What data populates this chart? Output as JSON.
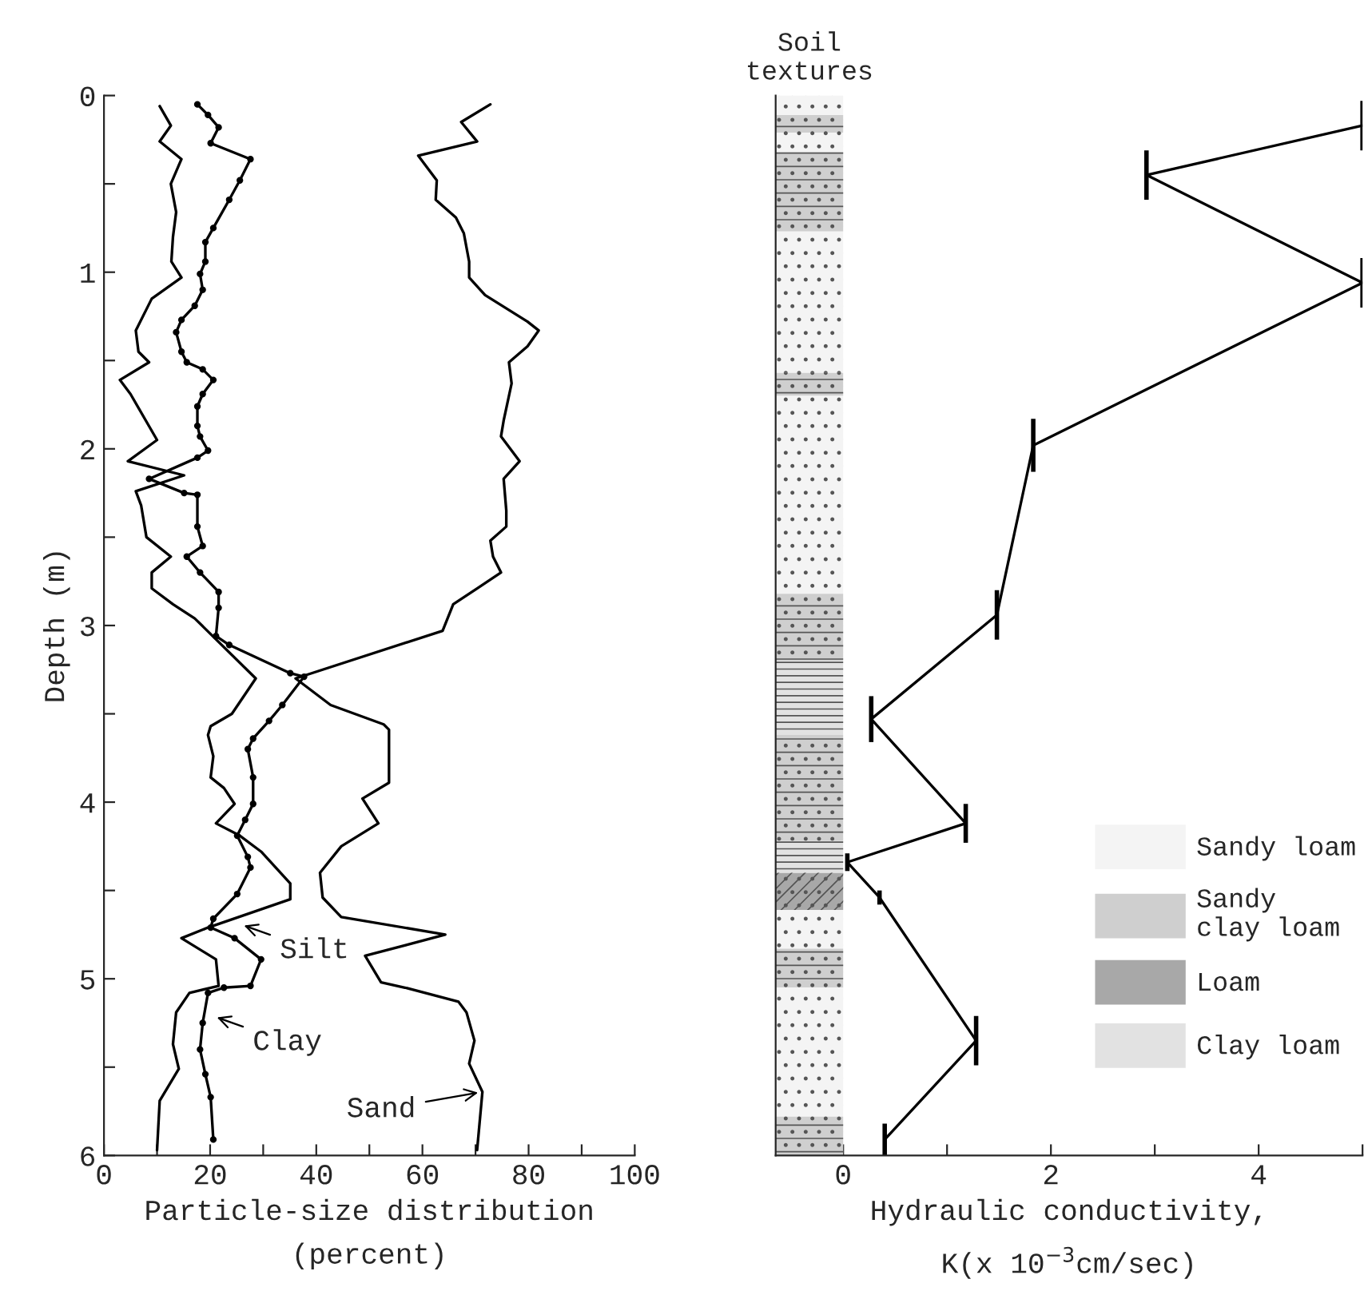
{
  "chart_data": [
    {
      "type": "line",
      "xlabel": "Particle-size distribution\n(percent)",
      "ylabel": "Depth (m)",
      "xlim": [
        0,
        100
      ],
      "ylim": [
        6,
        0
      ],
      "xticks": [
        0,
        {
          "value": 10,
          "label": null
        },
        20,
        {
          "value": 30,
          "label": null
        },
        40,
        {
          "value": 50,
          "label": null
        },
        60,
        {
          "value": 70,
          "label": null
        },
        80,
        {
          "value": 90,
          "label": null
        },
        100
      ],
      "yticks": [
        0,
        {
          "value": 0.5,
          "label": null
        },
        1,
        {
          "value": 1.5,
          "label": null
        },
        2,
        {
          "value": 2.5,
          "label": null
        },
        3,
        {
          "value": 3.5,
          "label": null
        },
        4,
        {
          "value": 4.5,
          "label": null
        },
        5,
        {
          "value": 5.5,
          "label": null
        },
        6
      ],
      "grid": false,
      "legend": false,
      "series": [
        {
          "color": "#000000",
          "x": [
            72.8,
            67.3,
            70.3,
            59.2,
            61.2,
            62.7,
            62.5,
            66.3,
            67.8,
            68.8,
            68.8,
            71.8,
            79.8,
            81.9,
            79.8,
            76.3,
            76.8,
            75.3,
            74.8,
            78.3,
            75.3,
            75.8,
            75.8,
            72.8,
            73.3,
            74.8,
            70.3,
            65.8,
            63.8,
            36.1,
            42.7,
            52.7,
            53.7,
            53.7,
            48.7,
            51.7,
            44.7,
            40.7,
            41.2,
            44.7,
            64.3,
            49.2,
            52.2,
            56.7,
            66.8,
            68.3,
            69.8,
            68.8,
            71.3,
            70.3
          ],
          "values": [
            0.05,
            0.15,
            0.26,
            0.34,
            0.42,
            0.48,
            0.59,
            0.69,
            0.78,
            0.94,
            1.03,
            1.13,
            1.28,
            1.33,
            1.42,
            1.51,
            1.63,
            1.84,
            1.93,
            2.07,
            2.17,
            2.35,
            2.44,
            2.52,
            2.61,
            2.7,
            2.79,
            2.88,
            3.03,
            3.3,
            3.45,
            3.56,
            3.59,
            3.89,
            3.98,
            4.12,
            4.25,
            4.4,
            4.54,
            4.65,
            4.75,
            4.87,
            5.02,
            5.05,
            5.13,
            5.19,
            5.35,
            5.48,
            5.64,
            5.97
          ]
        },
        {
          "color": "#000000",
          "x": [
            10.5,
            12.6,
            10.5,
            14.6,
            12.6,
            13.6,
            13.0,
            12.7,
            14.6,
            9.0,
            6.0,
            6.5,
            8.5,
            3.0,
            5.0,
            10.0,
            4.5,
            15.1,
            6.0,
            7.0,
            8.0,
            12.6,
            9.0,
            9.0,
            13.0,
            17.1,
            28.6,
            24.1,
            20.1,
            19.6,
            20.6,
            20.1,
            22.6,
            24.6,
            21.1,
            25.6,
            29.6,
            35.1,
            35.1,
            19.6,
            14.6,
            21.1,
            21.6,
            16.1,
            13.6,
            13.0,
            14.1,
            10.5,
            10.0
          ],
          "values": [
            0.06,
            0.17,
            0.26,
            0.36,
            0.5,
            0.66,
            0.8,
            0.94,
            1.03,
            1.15,
            1.33,
            1.45,
            1.51,
            1.61,
            1.69,
            1.95,
            2.07,
            2.15,
            2.24,
            2.32,
            2.5,
            2.61,
            2.7,
            2.79,
            2.88,
            2.96,
            3.3,
            3.5,
            3.57,
            3.62,
            3.74,
            3.86,
            3.92,
            4.01,
            4.12,
            4.19,
            4.28,
            4.46,
            4.55,
            4.71,
            4.77,
            4.89,
            5.04,
            5.08,
            5.19,
            5.37,
            5.51,
            5.69,
            5.97
          ]
        },
        {
          "color": "#000000",
          "marker": "circle",
          "x": [
            17.6,
            19.6,
            21.6,
            20.1,
            27.6,
            25.6,
            23.6,
            20.6,
            19.1,
            19.1,
            18.1,
            18.6,
            17.1,
            14.6,
            13.6,
            14.6,
            15.6,
            18.6,
            20.6,
            18.6,
            17.6,
            17.6,
            18.1,
            19.6,
            17.6,
            8.5,
            15.1,
            17.6,
            17.6,
            18.6,
            15.6,
            18.1,
            21.6,
            21.6,
            21.1,
            23.6,
            35.1,
            37.7,
            33.6,
            31.1,
            28.1,
            27.1,
            28.1,
            28.1,
            26.6,
            25.1,
            27.1,
            27.6,
            25.1,
            20.6,
            20.1,
            24.6,
            29.6,
            27.6,
            22.6,
            19.6,
            18.6,
            18.1,
            19.1,
            20.1,
            20.6
          ],
          "values": [
            0.05,
            0.11,
            0.18,
            0.27,
            0.36,
            0.48,
            0.59,
            0.75,
            0.83,
            0.94,
            1.01,
            1.1,
            1.19,
            1.27,
            1.34,
            1.45,
            1.51,
            1.55,
            1.61,
            1.69,
            1.76,
            1.87,
            1.93,
            2.01,
            2.05,
            2.17,
            2.25,
            2.26,
            2.44,
            2.55,
            2.61,
            2.7,
            2.81,
            2.9,
            3.06,
            3.11,
            3.27,
            3.29,
            3.45,
            3.54,
            3.64,
            3.7,
            3.86,
            4.01,
            4.1,
            4.19,
            4.31,
            4.37,
            4.52,
            4.66,
            4.71,
            4.77,
            4.89,
            5.04,
            5.05,
            5.08,
            5.25,
            5.4,
            5.54,
            5.67,
            5.91
          ]
        }
      ],
      "annotations": [
        {
          "text": "Silt",
          "x": 25.6,
          "y": 4.69
        },
        {
          "text": "Clay",
          "x": 20.5,
          "y": 5.21
        },
        {
          "text": "Sand",
          "x": 71.3,
          "y": 5.64
        }
      ]
    },
    {
      "type": "line",
      "xlabel": "Hydraulic conductivity,\nK(x 10$^{−3}$cm/sec)",
      "xlim": [
        -0.65,
        5
      ],
      "ylim": [
        6,
        0
      ],
      "xticks": [
        0,
        {
          "value": 1,
          "label": null
        },
        2,
        {
          "value": 3,
          "label": null
        },
        4,
        {
          "value": 5,
          "label": null
        }
      ],
      "tick_labels": "x",
      "grid": false,
      "legend": "lower right",
      "marker": "none",
      "series": [
        {
          "color": "#000000",
          "x": [
            5.0,
            2.92,
            5.0,
            1.83,
            1.48,
            0.27,
            1.18,
            0.04,
            0.35,
            1.28,
            0.4
          ],
          "values": [
            0.17,
            0.45,
            1.06,
            1.98,
            2.94,
            3.53,
            4.12,
            4.34,
            4.54,
            5.35,
            5.91
          ],
          "errors": [
            0.14,
            0.14,
            0.14,
            0.15,
            0.14,
            0.13,
            0.11,
            0.05,
            0.04,
            0.14,
            0.09
          ]
        }
      ],
      "bands": [
        {
          "axis": "y",
          "from": 0,
          "to": 0.11,
          "label": "Sandy loam",
          "color": "#f4f4f4"
        },
        {
          "axis": "y",
          "from": 0.11,
          "to": 0.21,
          "label": "Sandy\nclay loam",
          "color": "#cfcfcf"
        },
        {
          "axis": "y",
          "from": 4.4,
          "to": 4.61,
          "label": "Loam",
          "color": "#a8a8a8"
        },
        {
          "axis": "y",
          "from": 3.2,
          "to": 3.62,
          "label": "Clay loam",
          "color": "#e2e2e2"
        },
        {
          "axis": "y",
          "from": 0.21,
          "to": 0.32,
          "color": "#f4f4f4"
        },
        {
          "axis": "y",
          "from": 0.32,
          "to": 0.77,
          "color": "#cfcfcf"
        },
        {
          "axis": "y",
          "from": 0.77,
          "to": 1.57,
          "color": "#f4f4f4"
        },
        {
          "axis": "y",
          "from": 1.57,
          "to": 1.7,
          "color": "#cfcfcf"
        },
        {
          "axis": "y",
          "from": 1.7,
          "to": 2.82,
          "color": "#f4f4f4"
        },
        {
          "axis": "y",
          "from": 2.82,
          "to": 3.2,
          "color": "#cfcfcf"
        },
        {
          "axis": "y",
          "from": 3.62,
          "to": 4.22,
          "color": "#cfcfcf"
        },
        {
          "axis": "y",
          "from": 4.22,
          "to": 4.4,
          "color": "#e2e2e2"
        },
        {
          "axis": "y",
          "from": 4.61,
          "to": 4.83,
          "color": "#f4f4f4"
        },
        {
          "axis": "y",
          "from": 4.83,
          "to": 5.05,
          "color": "#cfcfcf"
        },
        {
          "axis": "y",
          "from": 5.05,
          "to": 5.78,
          "color": "#f4f4f4"
        },
        {
          "axis": "y",
          "from": 5.78,
          "to": 6,
          "color": "#cfcfcf"
        }
      ],
      "annotations": [
        "Soil\ntextures"
      ]
    }
  ]
}
